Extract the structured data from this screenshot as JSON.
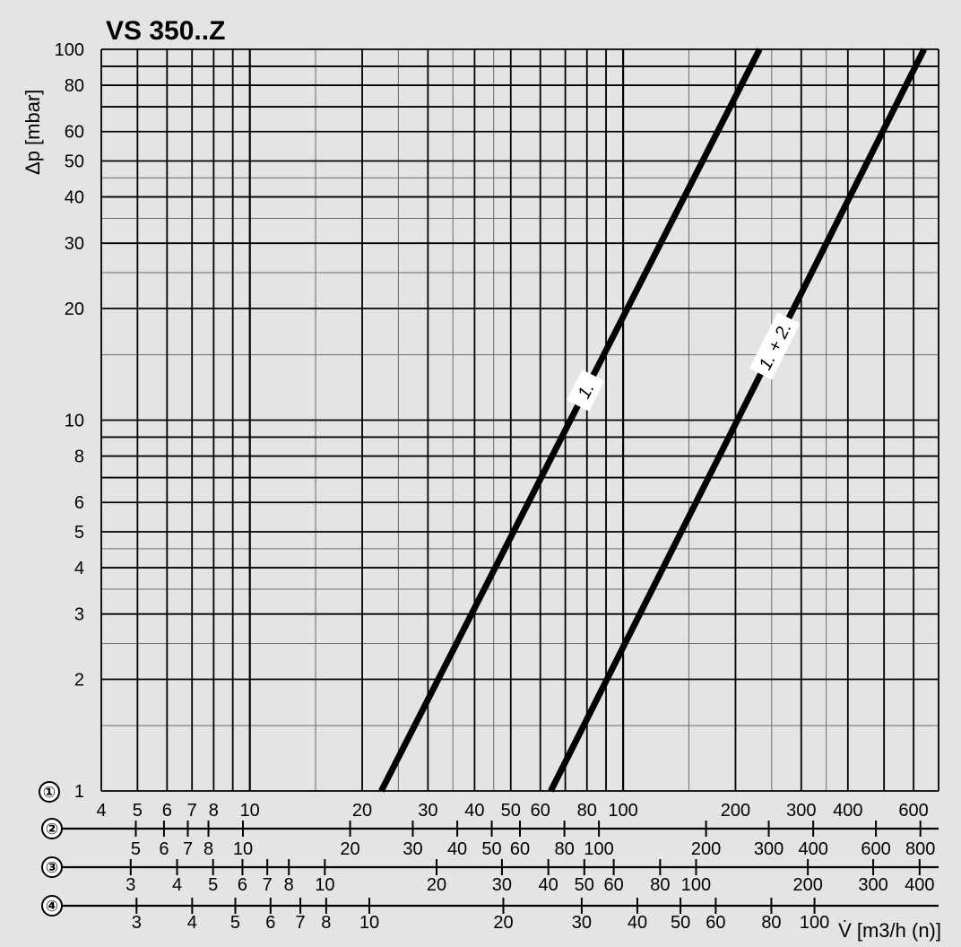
{
  "chart_data": {
    "type": "line",
    "title": "VS 350..Z",
    "ylabel": "Δp [mbar]",
    "xlabel": "V̇ [m3/h (n)]",
    "xscale": "log",
    "yscale": "log",
    "grid": true,
    "xlim": [
      4,
      700
    ],
    "ylim": [
      1,
      100
    ],
    "y_ticks": [
      1,
      2,
      3,
      4,
      5,
      6,
      8,
      10,
      20,
      30,
      40,
      50,
      60,
      80,
      100
    ],
    "series": [
      {
        "name": "1.",
        "x": [
          22.5,
          232
        ],
        "y": [
          1,
          100
        ]
      },
      {
        "name": "1. + 2.",
        "x": [
          64,
          640
        ],
        "y": [
          1,
          100
        ]
      }
    ],
    "x_scales": [
      {
        "marker": "①",
        "ticks": [
          {
            "label": "4",
            "value": 4
          },
          {
            "label": "5",
            "value": 5
          },
          {
            "label": "6",
            "value": 6
          },
          {
            "label": "7",
            "value": 7
          },
          {
            "label": "8",
            "value": 8
          },
          {
            "label": "10",
            "value": 10
          },
          {
            "label": "20",
            "value": 20
          },
          {
            "label": "30",
            "value": 30
          },
          {
            "label": "40",
            "value": 40
          },
          {
            "label": "50",
            "value": 50
          },
          {
            "label": "60",
            "value": 60
          },
          {
            "label": "80",
            "value": 80
          },
          {
            "label": "100",
            "value": 100
          },
          {
            "label": "200",
            "value": 200
          },
          {
            "label": "300",
            "value": 300
          },
          {
            "label": "400",
            "value": 400
          },
          {
            "label": "600",
            "value": 600
          }
        ]
      },
      {
        "marker": "②",
        "ticks": [
          {
            "label": "5",
            "value": 5
          },
          {
            "label": "6",
            "value": 6
          },
          {
            "label": "7",
            "value": 7
          },
          {
            "label": "8",
            "value": 8
          },
          {
            "label": "10",
            "value": 10
          },
          {
            "label": "20",
            "value": 20
          },
          {
            "label": "30",
            "value": 30
          },
          {
            "label": "40",
            "value": 40
          },
          {
            "label": "50",
            "value": 50
          },
          {
            "label": "60",
            "value": 60
          },
          {
            "label": "80",
            "value": 80
          },
          {
            "label": "100",
            "value": 100
          },
          {
            "label": "200",
            "value": 200
          },
          {
            "label": "300",
            "value": 300
          },
          {
            "label": "400",
            "value": 400
          },
          {
            "label": "600",
            "value": 600
          },
          {
            "label": "800",
            "value": 800
          }
        ]
      },
      {
        "marker": "③",
        "ticks": [
          {
            "label": "3",
            "value": 3
          },
          {
            "label": "4",
            "value": 4
          },
          {
            "label": "5",
            "value": 5
          },
          {
            "label": "6",
            "value": 6
          },
          {
            "label": "7",
            "value": 7
          },
          {
            "label": "8",
            "value": 8
          },
          {
            "label": "10",
            "value": 10
          },
          {
            "label": "20",
            "value": 20
          },
          {
            "label": "30",
            "value": 30
          },
          {
            "label": "40",
            "value": 40
          },
          {
            "label": "50",
            "value": 50
          },
          {
            "label": "60",
            "value": 60
          },
          {
            "label": "80",
            "value": 80
          },
          {
            "label": "100",
            "value": 100
          },
          {
            "label": "200",
            "value": 200
          },
          {
            "label": "300",
            "value": 300
          },
          {
            "label": "400",
            "value": 400
          }
        ]
      },
      {
        "marker": "④",
        "ticks": [
          {
            "label": "3",
            "value": 3
          },
          {
            "label": "4",
            "value": 4
          },
          {
            "label": "5",
            "value": 5
          },
          {
            "label": "6",
            "value": 6
          },
          {
            "label": "7",
            "value": 7
          },
          {
            "label": "8",
            "value": 8
          },
          {
            "label": "10",
            "value": 10
          },
          {
            "label": "20",
            "value": 20
          },
          {
            "label": "30",
            "value": 30
          },
          {
            "label": "40",
            "value": 40
          },
          {
            "label": "50",
            "value": 50
          },
          {
            "label": "60",
            "value": 60
          },
          {
            "label": "80",
            "value": 80
          },
          {
            "label": "100",
            "value": 100
          }
        ]
      }
    ]
  }
}
